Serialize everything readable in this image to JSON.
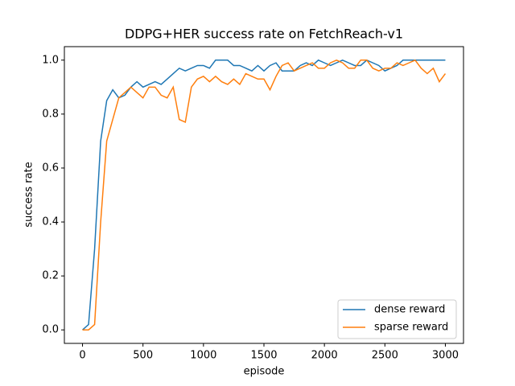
{
  "chart_data": {
    "type": "line",
    "title": "DDPG+HER success rate on FetchReach-v1",
    "x_label": "episode",
    "y_label": "success rate",
    "x": [
      0,
      50,
      100,
      150,
      200,
      250,
      300,
      350,
      400,
      450,
      500,
      550,
      600,
      650,
      700,
      750,
      800,
      850,
      900,
      950,
      1000,
      1050,
      1100,
      1150,
      1200,
      1250,
      1300,
      1350,
      1400,
      1450,
      1500,
      1550,
      1600,
      1650,
      1700,
      1750,
      1800,
      1850,
      1900,
      1950,
      2000,
      2050,
      2100,
      2150,
      2200,
      2250,
      2300,
      2350,
      2400,
      2450,
      2500,
      2550,
      2600,
      2650,
      2700,
      2750,
      2800,
      2850,
      2900,
      2950,
      3000
    ],
    "series": [
      {
        "name": "dense reward",
        "color": "#1f77b4",
        "values": [
          0,
          0.02,
          0.3,
          0.7,
          0.85,
          0.89,
          0.86,
          0.87,
          0.9,
          0.92,
          0.9,
          0.91,
          0.92,
          0.91,
          0.93,
          0.95,
          0.97,
          0.96,
          0.97,
          0.98,
          0.98,
          0.97,
          1.0,
          1.0,
          1.0,
          0.98,
          0.98,
          0.97,
          0.96,
          0.98,
          0.96,
          0.98,
          0.99,
          0.96,
          0.96,
          0.96,
          0.98,
          0.99,
          0.98,
          1.0,
          0.99,
          0.98,
          0.99,
          1.0,
          0.99,
          0.98,
          0.98,
          1.0,
          0.99,
          0.98,
          0.96,
          0.97,
          0.98,
          1.0,
          1.0,
          1.0,
          1.0,
          1.0,
          1.0,
          1.0,
          1.0
        ]
      },
      {
        "name": "sparse reward",
        "color": "#ff7f0e",
        "values": [
          0,
          0,
          0.02,
          0.4,
          0.7,
          0.78,
          0.86,
          0.88,
          0.9,
          0.88,
          0.86,
          0.9,
          0.9,
          0.87,
          0.86,
          0.9,
          0.78,
          0.77,
          0.9,
          0.93,
          0.94,
          0.92,
          0.94,
          0.92,
          0.91,
          0.93,
          0.91,
          0.95,
          0.94,
          0.93,
          0.93,
          0.89,
          0.94,
          0.98,
          0.99,
          0.96,
          0.97,
          0.98,
          0.99,
          0.97,
          0.97,
          0.99,
          1.0,
          0.99,
          0.97,
          0.97,
          1.0,
          1.0,
          0.97,
          0.96,
          0.97,
          0.97,
          0.99,
          0.98,
          0.99,
          1.0,
          0.97,
          0.95,
          0.97,
          0.92,
          0.95
        ]
      }
    ],
    "xlim": [
      -150,
      3150
    ],
    "xticks": [
      0,
      500,
      1000,
      1500,
      2000,
      2500,
      3000
    ],
    "ylim": [
      -0.05,
      1.05
    ],
    "yticks": [
      {
        "value": 0,
        "label": "0.0"
      },
      0.2,
      0.4,
      0.6,
      0.8,
      {
        "value": 1,
        "label": "1.0"
      }
    ],
    "legend": "lower right"
  }
}
